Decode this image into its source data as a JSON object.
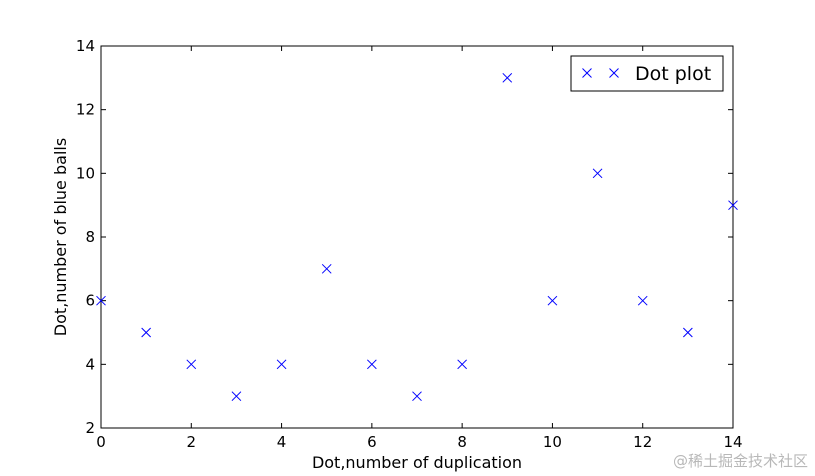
{
  "chart_data": {
    "type": "scatter",
    "title": "",
    "xlabel": "Dot,number of duplication",
    "ylabel": "Dot,number of blue balls",
    "xlim": [
      0,
      14
    ],
    "ylim": [
      2,
      14
    ],
    "xticks": [
      0,
      2,
      4,
      6,
      8,
      10,
      12,
      14
    ],
    "yticks": [
      2,
      4,
      6,
      8,
      10,
      12,
      14
    ],
    "grid": false,
    "marker": "x",
    "legend_position": "top-right",
    "series": [
      {
        "name": "Dot plot",
        "color": "#0000ff",
        "x": [
          0,
          1,
          2,
          3,
          4,
          5,
          6,
          7,
          8,
          9,
          10,
          11,
          12,
          13,
          14
        ],
        "y": [
          6,
          5,
          4,
          3,
          4,
          7,
          4,
          3,
          4,
          13,
          6,
          10,
          6,
          5,
          9
        ]
      }
    ]
  },
  "watermark": "@稀土掘金技术社区"
}
